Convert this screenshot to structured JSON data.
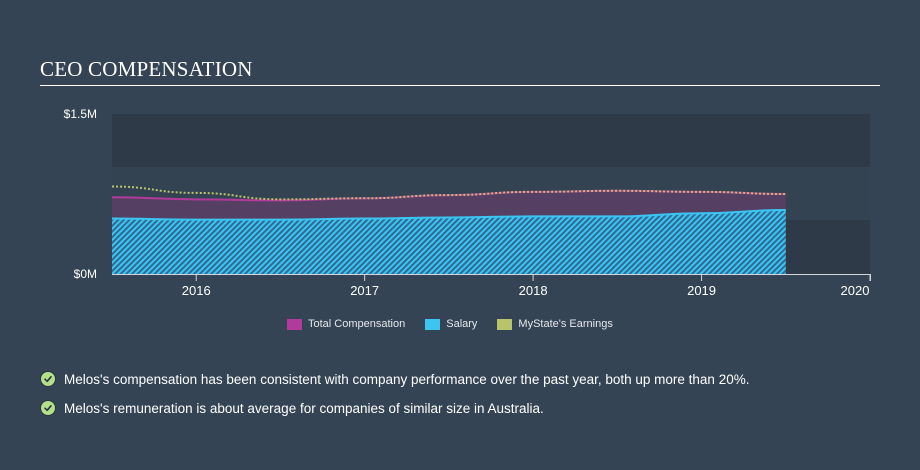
{
  "header": {
    "title": "CEO COMPENSATION"
  },
  "colors": {
    "background": "#344454",
    "plot_band_dark": "#2e3a47",
    "total_compensation": "#b23a9a",
    "salary": "#3bc5f0",
    "earnings": "#b9c46a",
    "check_fill": "#b4e08c"
  },
  "chart_data": {
    "type": "area",
    "title": "CEO COMPENSATION",
    "xlabel": "",
    "ylabel": "",
    "y_ticks": [
      "$0M",
      "$1.5M"
    ],
    "ylim": [
      0,
      1.5
    ],
    "x_ticks": [
      "2016",
      "2017",
      "2018",
      "2019",
      "2020"
    ],
    "xlim": [
      2015.5,
      2020.0
    ],
    "legend_position": "bottom",
    "x": [
      2015.5,
      2016.0,
      2016.5,
      2017.0,
      2017.5,
      2018.0,
      2018.5,
      2019.0,
      2019.5
    ],
    "series": [
      {
        "name": "Total Compensation",
        "values": [
          0.72,
          0.7,
          0.69,
          0.71,
          0.74,
          0.77,
          0.78,
          0.77,
          0.75
        ]
      },
      {
        "name": "Salary",
        "values": [
          0.52,
          0.51,
          0.51,
          0.52,
          0.53,
          0.54,
          0.54,
          0.57,
          0.6
        ]
      },
      {
        "name": "MyState's Earnings",
        "values": [
          0.82,
          0.76,
          0.7,
          0.71,
          0.74,
          0.77,
          0.78,
          0.77,
          0.75
        ]
      }
    ],
    "units": "USD millions"
  },
  "legend": {
    "items": [
      {
        "label": "Total Compensation",
        "color": "#b23a9a"
      },
      {
        "label": "Salary",
        "color": "#3bc5f0"
      },
      {
        "label": "MyState's Earnings",
        "color": "#b9c46a"
      }
    ]
  },
  "insights": [
    {
      "icon": "check-circle-icon",
      "text": "Melos's compensation has been consistent with company performance over the past year, both up more than 20%."
    },
    {
      "icon": "check-circle-icon",
      "text": "Melos's remuneration is about average for companies of similar size in Australia."
    }
  ]
}
